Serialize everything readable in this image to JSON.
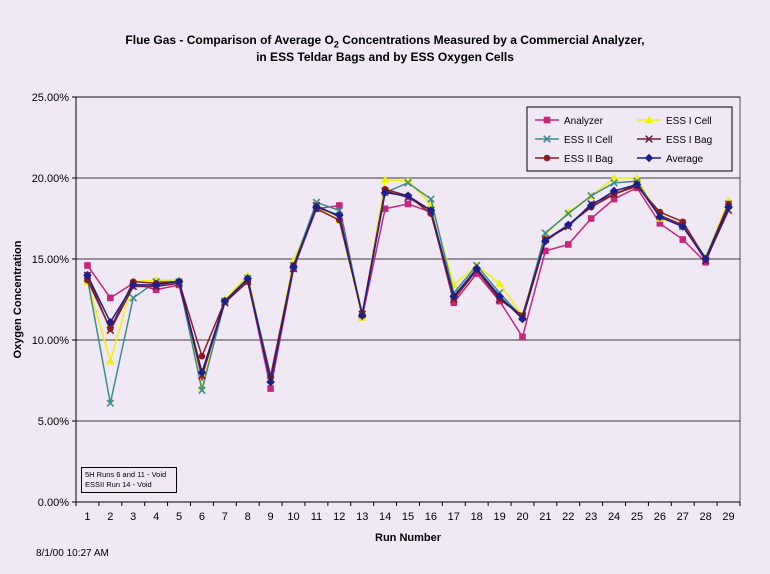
{
  "page": {
    "title_part1": "Flue Gas - Comparison of Average O",
    "title_sub": "2",
    "title_part2": " Concentrations Measured by a Commercial Analyzer,",
    "title_line2": "in ESS Teldar Bags and by ESS Oxygen Cells",
    "timestamp": "8/1/00 10:27 AM",
    "note_lines": [
      "5H Runs 6 and 11 - Void",
      "ESSII Run 14 - Void"
    ]
  },
  "chart_data": {
    "type": "line",
    "xlabel": "Run Number",
    "ylabel": "Oxygen Concentration",
    "x": [
      1,
      2,
      3,
      4,
      5,
      6,
      7,
      8,
      9,
      10,
      11,
      12,
      13,
      14,
      15,
      16,
      17,
      18,
      19,
      20,
      21,
      22,
      23,
      24,
      25,
      26,
      27,
      28,
      29
    ],
    "ylim": [
      0,
      25
    ],
    "yticks": [
      0,
      5,
      10,
      15,
      20,
      25
    ],
    "ytick_labels": [
      "0.00%",
      "5.00%",
      "10.00%",
      "15.00%",
      "20.00%",
      "25.00%"
    ],
    "grid": "horizontal",
    "legend": "top-right",
    "series": [
      {
        "name": "Analyzer",
        "color": "#c8267a",
        "marker": "square",
        "values": [
          14.6,
          12.6,
          13.5,
          13.1,
          13.4,
          7.7,
          12.4,
          13.7,
          7.0,
          14.4,
          18.1,
          18.3,
          11.4,
          18.1,
          18.4,
          17.9,
          12.3,
          14.1,
          12.4,
          10.2,
          15.5,
          15.9,
          17.5,
          18.7,
          19.4,
          17.2,
          16.2,
          14.8,
          18.3
        ]
      },
      {
        "name": "ESS I Cell",
        "color": "#f2f200",
        "marker": "triangle",
        "values": [
          13.6,
          8.7,
          13.6,
          13.7,
          13.7,
          7.1,
          12.5,
          14.0,
          7.7,
          14.9,
          18.2,
          17.4,
          11.4,
          19.9,
          19.8,
          18.4,
          13.4,
          14.6,
          13.5,
          11.5,
          16.5,
          17.9,
          18.9,
          20.0,
          20.0,
          17.5,
          17.1,
          15.1,
          18.6
        ]
      },
      {
        "name": "ESS II Cell",
        "color": "#3f8c8c",
        "marker": "x",
        "values": [
          13.8,
          6.1,
          12.6,
          13.6,
          13.6,
          6.9,
          12.4,
          13.8,
          7.8,
          14.6,
          18.5,
          18.0,
          11.6,
          19.1,
          19.7,
          18.7,
          12.9,
          14.6,
          12.9,
          11.4,
          16.6,
          17.8,
          18.9,
          19.7,
          19.8,
          17.6,
          17.0,
          15.1,
          18.4
        ]
      },
      {
        "name": "ESS I Bag",
        "color": "#6e1f3c",
        "marker": "x",
        "values": [
          14.0,
          10.6,
          13.3,
          13.3,
          13.5,
          7.8,
          12.3,
          13.6,
          7.6,
          14.4,
          18.3,
          17.6,
          11.6,
          19.2,
          18.8,
          18.0,
          12.5,
          14.3,
          12.5,
          11.5,
          16.2,
          17.0,
          18.4,
          19.0,
          19.6,
          17.7,
          17.1,
          14.9,
          18.0
        ]
      },
      {
        "name": "ESS II Bag",
        "color": "#8c1c1c",
        "marker": "circle",
        "values": [
          13.7,
          10.7,
          13.6,
          13.5,
          13.6,
          9.0,
          12.4,
          13.6,
          7.7,
          14.6,
          18.1,
          17.4,
          11.6,
          19.3,
          18.9,
          17.8,
          12.6,
          14.4,
          12.6,
          11.5,
          16.2,
          17.1,
          18.2,
          19.0,
          19.5,
          17.9,
          17.3,
          15.0,
          18.4
        ]
      },
      {
        "name": "Average",
        "color": "#1e1e8c",
        "marker": "diamond",
        "values": [
          14.0,
          11.1,
          13.4,
          13.4,
          13.6,
          8.0,
          12.4,
          13.8,
          7.4,
          14.5,
          18.2,
          17.7,
          11.5,
          19.1,
          18.9,
          18.0,
          12.7,
          14.4,
          12.7,
          11.3,
          16.1,
          17.1,
          18.3,
          19.2,
          19.6,
          17.6,
          17.0,
          15.0,
          18.2
        ]
      }
    ]
  }
}
